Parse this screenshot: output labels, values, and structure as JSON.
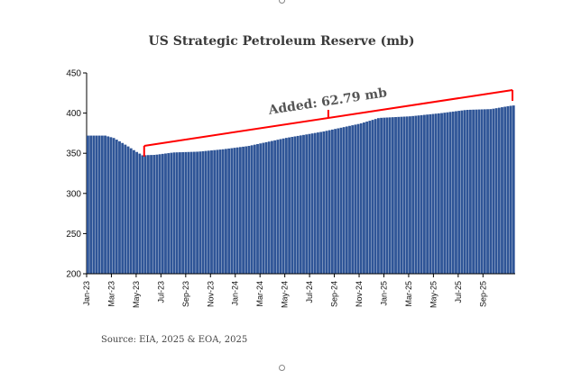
{
  "chart_data": {
    "type": "bar",
    "title": "US Strategic Petroleum Reserve (mb)",
    "xlabel": "",
    "ylabel": "",
    "ylim": [
      200,
      450
    ],
    "yticks": [
      200,
      250,
      300,
      350,
      400,
      450
    ],
    "grid": false,
    "bar_color": "#2f5597",
    "xtick_labels": [
      "Jan-23",
      "Mar-23",
      "May-23",
      "Jul-23",
      "Sep-23",
      "Nov-23",
      "Jan-24",
      "Mar-24",
      "May-24",
      "Jul-24",
      "Sep-24",
      "Nov-24",
      "Jan-25",
      "Mar-25",
      "May-25",
      "Jul-25",
      "Sep-25"
    ],
    "weeks_per_month": 4.33,
    "anchors": [
      {
        "month": 0,
        "value": 372
      },
      {
        "month": 1.5,
        "value": 372
      },
      {
        "month": 2.2,
        "value": 369
      },
      {
        "month": 3.2,
        "value": 360
      },
      {
        "month": 4.0,
        "value": 352
      },
      {
        "month": 4.5,
        "value": 347.5
      },
      {
        "month": 5.5,
        "value": 348
      },
      {
        "month": 7.0,
        "value": 351
      },
      {
        "month": 9.0,
        "value": 352
      },
      {
        "month": 11.0,
        "value": 355
      },
      {
        "month": 13.0,
        "value": 359
      },
      {
        "month": 16.0,
        "value": 369
      },
      {
        "month": 19.0,
        "value": 377
      },
      {
        "month": 20.5,
        "value": 382
      },
      {
        "month": 22.0,
        "value": 387
      },
      {
        "month": 23.5,
        "value": 394
      },
      {
        "month": 26.0,
        "value": 396
      },
      {
        "month": 28.5,
        "value": 400
      },
      {
        "month": 30.5,
        "value": 404
      },
      {
        "month": 32.5,
        "value": 405
      },
      {
        "month": 34.0,
        "value": 409
      },
      {
        "month": 34.6,
        "value": 410
      }
    ],
    "annotation": {
      "text": "Added: 62.79 mb",
      "from_month": 4.5,
      "from_value": 348,
      "to_month": 34.6,
      "to_value": 410.8
    },
    "annotation_color": "#ff0000"
  },
  "source": "Source: EIA, 2025 & EOA, 2025"
}
